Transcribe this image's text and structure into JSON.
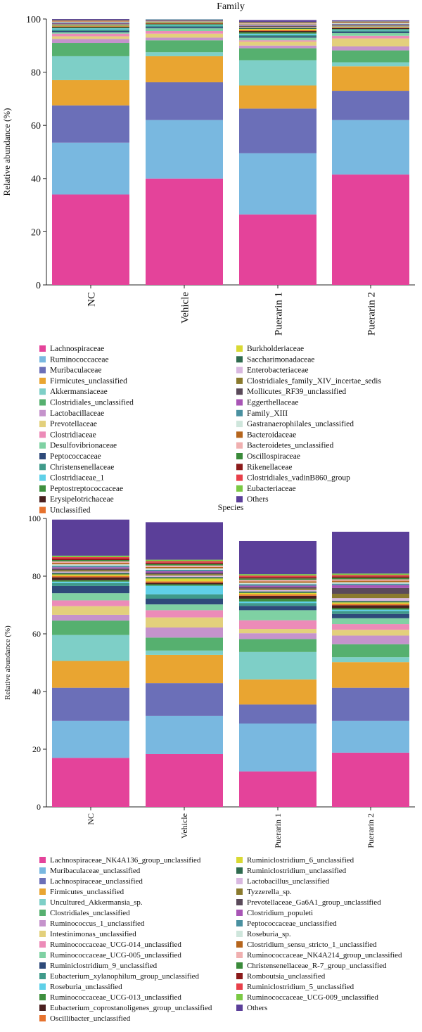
{
  "chart_data": [
    {
      "type": "bar",
      "stacked": true,
      "title": "Family",
      "ylabel": "Relative abundance (%)",
      "ylim": [
        0,
        100
      ],
      "yticks": [
        0,
        20,
        40,
        60,
        80,
        100
      ],
      "categories": [
        "NC",
        "Vehicle",
        "Puerarin 1",
        "Puerarin 2"
      ],
      "series": [
        {
          "name": "Lachnospiraceae",
          "color": "#e4439a",
          "values": [
            34,
            40,
            26.5,
            41.5
          ]
        },
        {
          "name": "Ruminococcaceae",
          "color": "#79b8e0",
          "values": [
            19.5,
            22,
            23,
            20.5
          ]
        },
        {
          "name": "Muribaculaceae",
          "color": "#6b6fb8",
          "values": [
            14,
            14.2,
            16.8,
            11
          ]
        },
        {
          "name": "Firmicutes_unclassified",
          "color": "#e9a531",
          "values": [
            9.5,
            9.8,
            8.7,
            9.2
          ]
        },
        {
          "name": "Akkermansiaceae",
          "color": "#7ecfc7",
          "values": [
            9,
            1.5,
            9.5,
            1.5
          ]
        },
        {
          "name": "Clostridiales_unclassified",
          "color": "#56b06f",
          "values": [
            5,
            4.5,
            4.5,
            4.5
          ]
        },
        {
          "name": "Lactobacillaceae",
          "color": "#c593cc",
          "values": [
            1.5,
            1,
            1,
            1.5
          ]
        },
        {
          "name": "Prevotellaceae",
          "color": "#e3d07c",
          "values": [
            1,
            1.5,
            1.5,
            3
          ]
        },
        {
          "name": "Clostridiaceae",
          "color": "#ec8bb8",
          "values": [
            1,
            1,
            0.5,
            1
          ]
        },
        {
          "name": "Desulfovibrionaceae",
          "color": "#7fd1a3",
          "values": [
            0.5,
            1,
            1,
            1
          ]
        },
        {
          "name": "Peptococcaceae",
          "color": "#2e4a7a",
          "values": [
            0.5,
            0.5,
            0.5,
            0.5
          ]
        },
        {
          "name": "Christensenellaceae",
          "color": "#3f9a8a",
          "values": [
            0.5,
            0.5,
            0.5,
            0.5
          ]
        },
        {
          "name": "Clostridiaceae_1",
          "color": "#5fd0e8",
          "values": [
            0.5,
            0.3,
            0.5,
            0.3
          ]
        },
        {
          "name": "Peptostreptococcaceae",
          "color": "#3e8f3e",
          "values": [
            0.3,
            0.3,
            0.5,
            0.3
          ]
        },
        {
          "name": "Erysipelotrichaceae",
          "color": "#4a1f1f",
          "values": [
            0.3,
            0.2,
            0.5,
            0.3
          ]
        },
        {
          "name": "Unclassified",
          "color": "#e6722e",
          "values": [
            0.2,
            0.2,
            0.3,
            0.2
          ]
        },
        {
          "name": "Burkholderiaceae",
          "color": "#d9d933",
          "values": [
            0.2,
            0.2,
            0.5,
            0.2
          ]
        },
        {
          "name": "Saccharimonadaceae",
          "color": "#2f6b4f",
          "values": [
            0.2,
            0.2,
            0.3,
            0.2
          ]
        },
        {
          "name": "Enterobacteriaceae",
          "color": "#d9b8e0",
          "values": [
            0.2,
            0.2,
            0.2,
            0.2
          ]
        },
        {
          "name": "Clostridiales_family_XIV_incertae_sedis",
          "color": "#8a7a2e",
          "values": [
            0.2,
            0.2,
            0.3,
            0.2
          ]
        },
        {
          "name": "Mollicutes_RF39_unclassified",
          "color": "#5a4a5a",
          "values": [
            0.2,
            0.2,
            0.3,
            0.2
          ]
        },
        {
          "name": "Eggerthellaceae",
          "color": "#a855b5",
          "values": [
            0.2,
            0.2,
            0.2,
            0.2
          ]
        },
        {
          "name": "Family_XIII",
          "color": "#4a90a0",
          "values": [
            0.2,
            0.2,
            0.2,
            0.2
          ]
        },
        {
          "name": "Gastranaerophilales_unclassified",
          "color": "#cfe6dc",
          "values": [
            0.2,
            0.2,
            0.2,
            0.2
          ]
        },
        {
          "name": "Bacteroidaceae",
          "color": "#b5651d",
          "values": [
            0.2,
            0.1,
            0.2,
            0.2
          ]
        },
        {
          "name": "Bacteroidetes_unclassified",
          "color": "#f0b0b0",
          "values": [
            0.1,
            0.1,
            0.2,
            0.1
          ]
        },
        {
          "name": "Oscillospiraceae",
          "color": "#3a8a3a",
          "values": [
            0.1,
            0.1,
            0.2,
            0.1
          ]
        },
        {
          "name": "Rikenellaceae",
          "color": "#8b1a1a",
          "values": [
            0.1,
            0.1,
            0.1,
            0.1
          ]
        },
        {
          "name": "Clostridiales_vadinB860_group",
          "color": "#e8404a",
          "values": [
            0.1,
            0.1,
            0.1,
            0.1
          ]
        },
        {
          "name": "Eubacteriaceae",
          "color": "#7ac943",
          "values": [
            0.1,
            0.1,
            0.1,
            0.1
          ]
        },
        {
          "name": "Others",
          "color": "#5b3f99",
          "values": [
            0.5,
            0.5,
            0.7,
            0.4
          ]
        }
      ]
    },
    {
      "type": "bar",
      "stacked": true,
      "title": "Species",
      "ylabel": "Relative abundance (%)",
      "ylim": [
        0,
        100
      ],
      "yticks": [
        0,
        20,
        40,
        60,
        80,
        100
      ],
      "categories": [
        "NC",
        "Vehicle",
        "Puerarin 1",
        "Puerarin 2"
      ],
      "series": [
        {
          "name": "Lachnospiraceae_NK4A136_group_unclassified",
          "color": "#e4439a",
          "values": [
            17,
            18.3,
            12.3,
            18.8
          ]
        },
        {
          "name": "Muribaculaceae_unclassified",
          "color": "#79b8e0",
          "values": [
            12.8,
            13.2,
            16.6,
            11
          ]
        },
        {
          "name": "Lachnospiraceae_unclassified",
          "color": "#6b6fb8",
          "values": [
            11.5,
            11.4,
            6.6,
            11.5
          ]
        },
        {
          "name": "Firmicutes_unclassified",
          "color": "#e9a531",
          "values": [
            9.3,
            9.8,
            8.7,
            8.9
          ]
        },
        {
          "name": "Uncultured_Akkermansia_sp.",
          "color": "#7ecfc7",
          "values": [
            9,
            1.5,
            9.5,
            1.7
          ]
        },
        {
          "name": "Clostridiales_unclassified",
          "color": "#56b06f",
          "values": [
            5,
            4.5,
            4.5,
            4.5
          ]
        },
        {
          "name": "Ruminococcus_1_unclassified",
          "color": "#c593cc",
          "values": [
            2,
            3.5,
            2,
            3
          ]
        },
        {
          "name": "Intestinimonas_unclassified",
          "color": "#e3d07c",
          "values": [
            3,
            3.5,
            1.5,
            2
          ]
        },
        {
          "name": "Ruminococcaceae_UCG-014_unclassified",
          "color": "#ec8bb8",
          "values": [
            2,
            2.5,
            3,
            2
          ]
        },
        {
          "name": "Ruminococcaceae_UCG-005_unclassified",
          "color": "#7fd1a3",
          "values": [
            2.5,
            2,
            3.5,
            2
          ]
        },
        {
          "name": "Ruminiclostridium_9_unclassified",
          "color": "#2e4a7a",
          "values": [
            2.5,
            2,
            1.5,
            1.5
          ]
        },
        {
          "name": "Eubacterium_xylanophilum_group_unclassified",
          "color": "#3f9a8a",
          "values": [
            1,
            1.5,
            1,
            1
          ]
        },
        {
          "name": "Roseburia_unclassified",
          "color": "#5fd0e8",
          "values": [
            0.5,
            3,
            0.5,
            0.5
          ]
        },
        {
          "name": "Ruminococcaceae_UCG-013_unclassified",
          "color": "#3e8f3e",
          "values": [
            0.5,
            0.5,
            1,
            0.5
          ]
        },
        {
          "name": "Eubacterium_coprostanoligenes_group_unclassified",
          "color": "#4a1f1f",
          "values": [
            1,
            0.5,
            1,
            1
          ]
        },
        {
          "name": "Oscillibacter_unclassified",
          "color": "#e6722e",
          "values": [
            0.5,
            0.5,
            0.5,
            0.5
          ]
        },
        {
          "name": "Ruminiclostridium_6_unclassified",
          "color": "#d9d933",
          "values": [
            0.5,
            1,
            0.5,
            0.5
          ]
        },
        {
          "name": "Ruminiclostridium_unclassified",
          "color": "#2f6b4f",
          "values": [
            0.5,
            0.5,
            0.5,
            0.5
          ]
        },
        {
          "name": "Lactobacillus_unclassified",
          "color": "#d9b8e0",
          "values": [
            0.5,
            0.5,
            0.5,
            1
          ]
        },
        {
          "name": "Tyzzerella_sp.",
          "color": "#8a7a2e",
          "values": [
            0.5,
            0.5,
            0.5,
            1.5
          ]
        },
        {
          "name": "Prevotellaceae_Ga6A1_group_unclassified",
          "color": "#5a4a5a",
          "values": [
            0.5,
            0.5,
            0.5,
            2
          ]
        },
        {
          "name": "Clostridium_populeti",
          "color": "#a855b5",
          "values": [
            0.5,
            0.5,
            0.5,
            1
          ]
        },
        {
          "name": "Peptococcaceae_unclassified",
          "color": "#4a90a0",
          "values": [
            0.5,
            0.5,
            0.5,
            0.5
          ]
        },
        {
          "name": "Roseburia_sp.",
          "color": "#cfe6dc",
          "values": [
            0.5,
            0.5,
            0.5,
            0.5
          ]
        },
        {
          "name": "Clostridium_sensu_stricto_1_unclassified",
          "color": "#b5651d",
          "values": [
            0.5,
            0.5,
            0.5,
            0.5
          ]
        },
        {
          "name": "Ruminococcaceae_NK4A214_group_unclassified",
          "color": "#f0b0b0",
          "values": [
            0.5,
            0.5,
            0.5,
            0.5
          ]
        },
        {
          "name": "Christensenellaceae_R-7_group_unclassified",
          "color": "#3a8a3a",
          "values": [
            0.5,
            0.5,
            0.5,
            0.5
          ]
        },
        {
          "name": "Romboutsia_unclassified",
          "color": "#8b1a1a",
          "values": [
            0.5,
            0.5,
            0.5,
            0.5
          ]
        },
        {
          "name": "Ruminiclostridium_5_unclassified",
          "color": "#e8404a",
          "values": [
            0.5,
            0.5,
            0.5,
            0.5
          ]
        },
        {
          "name": "Ruminococcaceae_UCG-009_unclassified",
          "color": "#7ac943",
          "values": [
            0.5,
            0.5,
            0.5,
            0.5
          ]
        },
        {
          "name": "Others",
          "color": "#5b3f99",
          "values": [
            12.5,
            13,
            11.5,
            14.5
          ]
        }
      ]
    }
  ]
}
